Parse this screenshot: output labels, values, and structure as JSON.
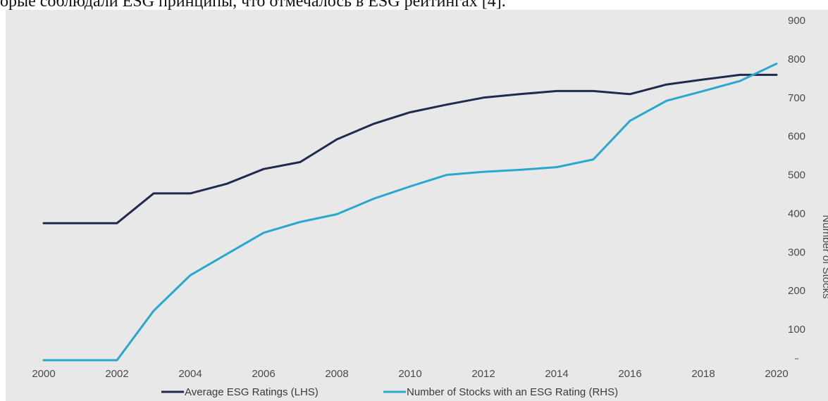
{
  "header": {
    "caption_text": "орые соблюдали ESG принципы, что отмечалось в ESG рейтингах [4]."
  },
  "colors": {
    "background": "#e8e8e8",
    "series_lhs": "#1f2a4d",
    "series_rhs": "#29a8cf"
  },
  "chart_data": {
    "type": "line",
    "title": "",
    "xlabel": "",
    "ylabel_right": "Number of Stocks",
    "x": [
      2000,
      2001,
      2002,
      2003,
      2004,
      2005,
      2006,
      2007,
      2008,
      2009,
      2010,
      2011,
      2012,
      2013,
      2014,
      2015,
      2016,
      2017,
      2018,
      2019,
      2020
    ],
    "xticks": [
      "2000",
      "2002",
      "2004",
      "2006",
      "2008",
      "2010",
      "2012",
      "2014",
      "2016",
      "2018",
      "2020"
    ],
    "xlim": [
      2000,
      2020
    ],
    "ylim": [
      0,
      900
    ],
    "yticks_right": [
      "100",
      "200",
      "300",
      "400",
      "500",
      "600",
      "700",
      "800",
      "900"
    ],
    "yticks_right_values": [
      100,
      200,
      300,
      400,
      500,
      600,
      700,
      800,
      900
    ],
    "grid": false,
    "legend_position": "bottom",
    "series": [
      {
        "name": "Average ESG Ratings (LHS)",
        "color": "#1f2a4d",
        "values": [
          375,
          375,
          375,
          452,
          452,
          477,
          515,
          533,
          592,
          632,
          662,
          682,
          700,
          709,
          717,
          717,
          709,
          734,
          747,
          759,
          759
        ]
      },
      {
        "name": "Number of Stocks with an ESG Rating (RHS)",
        "color": "#29a8cf",
        "values": [
          20,
          20,
          20,
          148,
          240,
          295,
          350,
          378,
          398,
          438,
          470,
          500,
          508,
          513,
          520,
          540,
          640,
          692,
          717,
          743,
          788
        ]
      }
    ]
  }
}
